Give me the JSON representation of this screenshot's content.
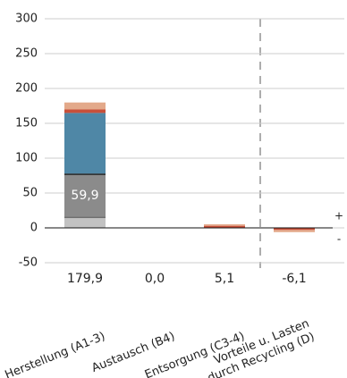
{
  "chart_data": {
    "type": "bar",
    "stacked": true,
    "categories": [
      "Herstellung (A1-3)",
      "Austausch (B4)",
      "Entsorgung (C3-4)",
      [
        "Vorteile u. Lasten",
        "durch Recycling (D)"
      ]
    ],
    "series": [
      {
        "color": "#c2c2c2",
        "values": [
          14,
          0,
          0,
          0
        ]
      },
      {
        "color": "#6f6f6f",
        "values": [
          2,
          0,
          0,
          0
        ]
      },
      {
        "color": "#8b8b8b",
        "values": [
          59.9,
          0,
          0,
          0
        ],
        "value_labels": [
          "59,9",
          null,
          null,
          null
        ]
      },
      {
        "color": "#111111",
        "values": [
          2,
          0,
          0,
          0
        ]
      },
      {
        "color": "#4f87a6",
        "values": [
          87,
          0,
          0,
          0
        ]
      },
      {
        "color": "#c8503a",
        "values": [
          5,
          0,
          3,
          -3
        ]
      },
      {
        "color": "#e3a98a",
        "values": [
          10,
          0,
          2.1,
          -3.1
        ]
      }
    ],
    "totals": [
      179.9,
      0,
      5.1,
      -6.1
    ],
    "total_labels": [
      "179,9",
      "0,0",
      "5,1",
      "-6,1"
    ],
    "annotations": [
      "+",
      "-"
    ],
    "ylim": [
      -50,
      300
    ],
    "yticks": [
      -50,
      0,
      50,
      100,
      150,
      200,
      250,
      300
    ],
    "grid": true
  }
}
